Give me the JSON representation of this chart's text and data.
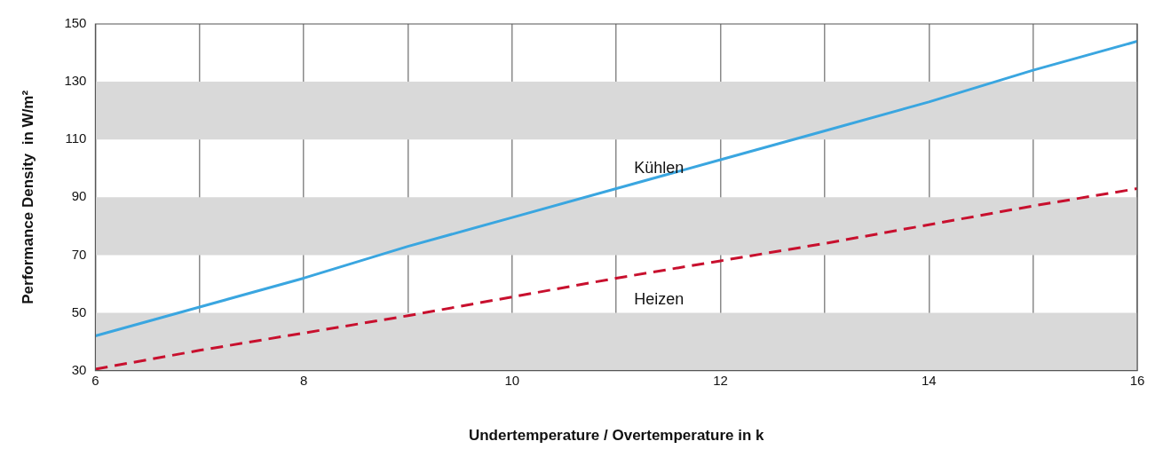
{
  "chart_data": {
    "type": "line",
    "xlabel": "Undertemperature / Overtemperature in k",
    "ylabel": "Performance Density  in W/m²",
    "x": [
      6,
      7,
      8,
      9,
      10,
      11,
      12,
      13,
      14,
      15,
      16
    ],
    "series": [
      {
        "name": "Kühlen",
        "color": "#3aa6e0",
        "line_style": "solid",
        "values": [
          42,
          52,
          62,
          73,
          83,
          93,
          103,
          113,
          123,
          134,
          144
        ]
      },
      {
        "name": "Heizen",
        "color": "#c8102e",
        "line_style": "dashed",
        "values": [
          30.5,
          37,
          43,
          49,
          55.5,
          62,
          68,
          74,
          80.5,
          87,
          93
        ]
      }
    ],
    "xlim": [
      6,
      16
    ],
    "xticks": [
      6,
      {
        "value": 7,
        "label": null
      },
      8,
      {
        "value": 9,
        "label": null
      },
      10,
      {
        "value": 11,
        "label": null
      },
      12,
      {
        "value": 13,
        "label": null
      },
      14,
      {
        "value": 15,
        "label": null
      },
      16
    ],
    "ylim": [
      30,
      150
    ],
    "yticks": [
      30,
      50,
      70,
      90,
      110,
      130,
      150
    ],
    "bands": [
      {
        "axis": "y",
        "from": 30,
        "to": 50,
        "color": "#d9d9d9"
      },
      {
        "axis": "y",
        "from": 70,
        "to": 90,
        "color": "#d9d9d9"
      },
      {
        "axis": "y",
        "from": 110,
        "to": 130,
        "color": "#d9d9d9"
      }
    ],
    "grid": "x",
    "legend": false,
    "marker": "none"
  }
}
